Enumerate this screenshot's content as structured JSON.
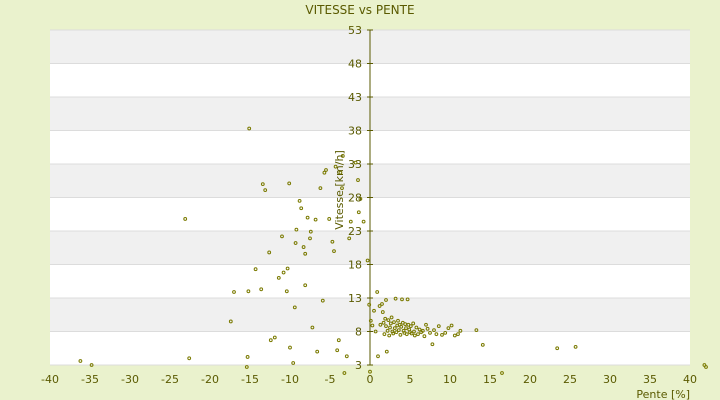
{
  "chart_data": {
    "type": "scatter",
    "title": "VITESSE vs PENTE",
    "xlabel": "Pente [%]",
    "ylabel": "Vitesse [km/h]",
    "xlim": [
      -40,
      40
    ],
    "ylim": [
      3,
      53
    ],
    "x_ticks": [
      "-40",
      "-35",
      "-30",
      "-25",
      "-20",
      "-15",
      "-10",
      "-5",
      "0",
      "5",
      "10",
      "15",
      "20",
      "25",
      "30",
      "35",
      "40"
    ],
    "y_ticks": [
      "3",
      "8",
      "13",
      "18",
      "23",
      "28",
      "33",
      "38",
      "43",
      "48",
      "53"
    ],
    "grid": true,
    "band_color": "#f0f0f0",
    "plot_bg": "#ffffff",
    "marker_color": "#7a7a00",
    "axis_color": "#5a5a00",
    "series": [
      {
        "points": [
          [
            -36.2,
            3.6
          ],
          [
            -34.8,
            3.0
          ],
          [
            -22.6,
            4.0
          ],
          [
            -23.1,
            24.8
          ],
          [
            -15.1,
            38.3
          ],
          [
            -17.4,
            9.5
          ],
          [
            -17.0,
            13.9
          ],
          [
            -15.3,
            4.2
          ],
          [
            -15.4,
            2.7
          ],
          [
            -15.2,
            14.0
          ],
          [
            -14.3,
            17.3
          ],
          [
            -13.6,
            14.3
          ],
          [
            -13.4,
            30.0
          ],
          [
            -13.1,
            29.1
          ],
          [
            -12.6,
            19.8
          ],
          [
            -12.4,
            6.7
          ],
          [
            -11.9,
            7.1
          ],
          [
            -11.4,
            16.0
          ],
          [
            -11.0,
            22.2
          ],
          [
            -10.8,
            16.8
          ],
          [
            -10.4,
            14.0
          ],
          [
            -10.3,
            17.4
          ],
          [
            -10.1,
            30.1
          ],
          [
            -10.0,
            5.6
          ],
          [
            -9.6,
            3.3
          ],
          [
            -9.4,
            11.6
          ],
          [
            -9.3,
            21.2
          ],
          [
            -9.2,
            23.2
          ],
          [
            -8.8,
            27.5
          ],
          [
            -8.6,
            26.4
          ],
          [
            -8.3,
            20.6
          ],
          [
            -8.1,
            19.6
          ],
          [
            -8.1,
            14.9
          ],
          [
            -7.8,
            25.0
          ],
          [
            -7.5,
            21.9
          ],
          [
            -7.4,
            22.9
          ],
          [
            -7.2,
            8.6
          ],
          [
            -6.8,
            24.7
          ],
          [
            -6.6,
            5.0
          ],
          [
            -6.2,
            29.4
          ],
          [
            -5.9,
            12.6
          ],
          [
            -5.7,
            31.7
          ],
          [
            -5.5,
            32.1
          ],
          [
            -5.1,
            24.8
          ],
          [
            -4.7,
            21.4
          ],
          [
            -4.5,
            20.0
          ],
          [
            -4.3,
            32.6
          ],
          [
            -4.1,
            5.2
          ],
          [
            -3.9,
            6.7
          ],
          [
            -3.7,
            31.7
          ],
          [
            -3.5,
            29.4
          ],
          [
            -3.4,
            34.2
          ],
          [
            -3.2,
            1.8
          ],
          [
            -2.9,
            4.3
          ],
          [
            -2.6,
            21.9
          ],
          [
            -2.4,
            24.4
          ],
          [
            -1.8,
            33.2
          ],
          [
            -1.5,
            30.6
          ],
          [
            -1.4,
            25.8
          ],
          [
            -1.2,
            27.8
          ],
          [
            -0.8,
            24.4
          ],
          [
            -0.3,
            18.6
          ],
          [
            -0.1,
            12.0
          ],
          [
            0.0,
            2.0
          ],
          [
            0.1,
            9.6
          ],
          [
            0.3,
            8.9
          ],
          [
            0.5,
            11.1
          ],
          [
            0.7,
            8.0
          ],
          [
            0.9,
            13.9
          ],
          [
            1.0,
            4.3
          ],
          [
            1.2,
            11.8
          ],
          [
            1.3,
            9.0
          ],
          [
            1.5,
            12.1
          ],
          [
            1.6,
            10.9
          ],
          [
            1.7,
            9.3
          ],
          [
            1.8,
            7.6
          ],
          [
            1.9,
            9.9
          ],
          [
            2.0,
            8.8
          ],
          [
            2.0,
            12.7
          ],
          [
            2.1,
            5.0
          ],
          [
            2.2,
            8.1
          ],
          [
            2.3,
            9.7
          ],
          [
            2.4,
            7.4
          ],
          [
            2.5,
            8.6
          ],
          [
            2.6,
            9.2
          ],
          [
            2.7,
            10.1
          ],
          [
            2.8,
            8.0
          ],
          [
            2.9,
            7.7
          ],
          [
            3.0,
            9.4
          ],
          [
            3.1,
            8.5
          ],
          [
            3.2,
            12.9
          ],
          [
            3.3,
            7.9
          ],
          [
            3.4,
            8.9
          ],
          [
            3.5,
            9.6
          ],
          [
            3.6,
            8.2
          ],
          [
            3.7,
            9.0
          ],
          [
            3.8,
            7.5
          ],
          [
            3.9,
            8.7
          ],
          [
            4.0,
            12.8
          ],
          [
            4.1,
            9.3
          ],
          [
            4.2,
            8.1
          ],
          [
            4.3,
            7.8
          ],
          [
            4.4,
            9.1
          ],
          [
            4.5,
            8.5
          ],
          [
            4.6,
            7.6
          ],
          [
            4.7,
            12.8
          ],
          [
            4.8,
            9.0
          ],
          [
            4.9,
            8.3
          ],
          [
            5.0,
            7.9
          ],
          [
            5.1,
            8.8
          ],
          [
            5.2,
            7.7
          ],
          [
            5.4,
            9.2
          ],
          [
            5.5,
            8.0
          ],
          [
            5.6,
            7.4
          ],
          [
            5.8,
            8.6
          ],
          [
            6.0,
            7.6
          ],
          [
            6.2,
            8.3
          ],
          [
            6.4,
            7.9
          ],
          [
            6.6,
            8.1
          ],
          [
            6.8,
            7.3
          ],
          [
            7.0,
            9.0
          ],
          [
            7.2,
            8.4
          ],
          [
            7.5,
            7.8
          ],
          [
            7.8,
            6.1
          ],
          [
            8.0,
            8.2
          ],
          [
            8.3,
            7.6
          ],
          [
            8.6,
            8.8
          ],
          [
            9.0,
            7.5
          ],
          [
            9.4,
            7.8
          ],
          [
            9.8,
            8.5
          ],
          [
            10.2,
            8.9
          ],
          [
            10.6,
            7.4
          ],
          [
            11.0,
            7.6
          ],
          [
            11.3,
            8.1
          ],
          [
            13.3,
            8.2
          ],
          [
            14.1,
            6.0
          ],
          [
            16.5,
            1.8
          ],
          [
            23.4,
            5.5
          ],
          [
            25.7,
            5.7
          ],
          [
            41.8,
            3.0
          ],
          [
            42.0,
            2.7
          ]
        ]
      }
    ]
  }
}
